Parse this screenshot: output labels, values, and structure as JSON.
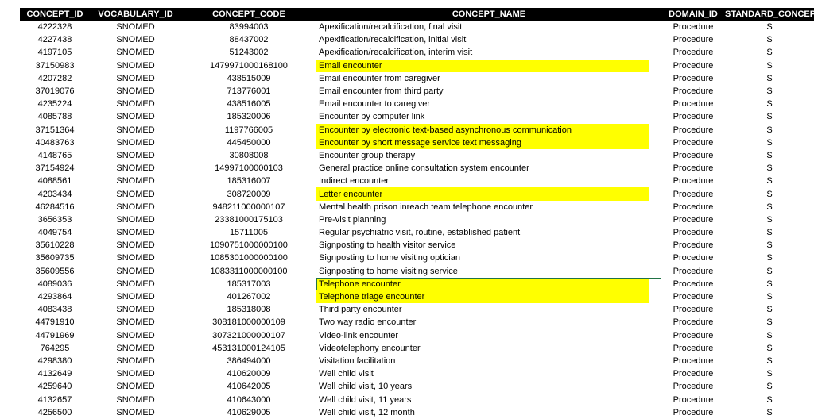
{
  "table": {
    "columns": [
      "CONCEPT_ID",
      "VOCABULARY_ID",
      "CONCEPT_CODE",
      "CONCEPT_NAME",
      "DOMAIN_ID",
      "STANDARD_CONCEP"
    ],
    "rows": [
      [
        "4222328",
        "SNOMED",
        "83994003",
        "Apexification/recalcification, final visit",
        "Procedure",
        "S"
      ],
      [
        "4227438",
        "SNOMED",
        "88437002",
        "Apexification/recalcification, initial visit",
        "Procedure",
        "S"
      ],
      [
        "4197105",
        "SNOMED",
        "51243002",
        "Apexification/recalcification, interim visit",
        "Procedure",
        "S"
      ],
      [
        "37150983",
        "SNOMED",
        "1479971000168100",
        "Email encounter",
        "Procedure",
        "S"
      ],
      [
        "4207282",
        "SNOMED",
        "438515009",
        "Email encounter from caregiver",
        "Procedure",
        "S"
      ],
      [
        "37019076",
        "SNOMED",
        "713776001",
        "Email encounter from third party",
        "Procedure",
        "S"
      ],
      [
        "4235224",
        "SNOMED",
        "438516005",
        "Email encounter to caregiver",
        "Procedure",
        "S"
      ],
      [
        "4085788",
        "SNOMED",
        "185320006",
        "Encounter by computer link",
        "Procedure",
        "S"
      ],
      [
        "37151364",
        "SNOMED",
        "1197766005",
        "Encounter by electronic text-based asynchronous communication",
        "Procedure",
        "S"
      ],
      [
        "40483763",
        "SNOMED",
        "445450000",
        "Encounter by short message service text messaging",
        "Procedure",
        "S"
      ],
      [
        "4148765",
        "SNOMED",
        "30808008",
        "Encounter group therapy",
        "Procedure",
        "S"
      ],
      [
        "37154924",
        "SNOMED",
        "14997100000103",
        "General practice online consultation system encounter",
        "Procedure",
        "S"
      ],
      [
        "4088561",
        "SNOMED",
        "185316007",
        "Indirect encounter",
        "Procedure",
        "S"
      ],
      [
        "4203434",
        "SNOMED",
        "308720009",
        "Letter encounter",
        "Procedure",
        "S"
      ],
      [
        "46284516",
        "SNOMED",
        "948211000000107",
        "Mental health prison inreach team telephone encounter",
        "Procedure",
        "S"
      ],
      [
        "3656353",
        "SNOMED",
        "23381000175103",
        "Pre-visit planning",
        "Procedure",
        "S"
      ],
      [
        "4049754",
        "SNOMED",
        "15711005",
        "Regular psychiatric visit, routine, established patient",
        "Procedure",
        "S"
      ],
      [
        "35610228",
        "SNOMED",
        "1090751000000100",
        "Signposting to health visitor service",
        "Procedure",
        "S"
      ],
      [
        "35609735",
        "SNOMED",
        "1085301000000100",
        "Signposting to home visiting optician",
        "Procedure",
        "S"
      ],
      [
        "35609556",
        "SNOMED",
        "1083311000000100",
        "Signposting to home visiting service",
        "Procedure",
        "S"
      ],
      [
        "4089036",
        "SNOMED",
        "185317003",
        "Telephone encounter",
        "Procedure",
        "S"
      ],
      [
        "4293864",
        "SNOMED",
        "401267002",
        "Telephone triage encounter",
        "Procedure",
        "S"
      ],
      [
        "4083438",
        "SNOMED",
        "185318008",
        "Third party encounter",
        "Procedure",
        "S"
      ],
      [
        "44791910",
        "SNOMED",
        "308181000000109",
        "Two way radio encounter",
        "Procedure",
        "S"
      ],
      [
        "44791969",
        "SNOMED",
        "307321000000107",
        "Video-link encounter",
        "Procedure",
        "S"
      ],
      [
        "764295",
        "SNOMED",
        "453131000124105",
        "Videotelephony encounter",
        "Procedure",
        "S"
      ],
      [
        "4298380",
        "SNOMED",
        "386494000",
        "Visitation facilitation",
        "Procedure",
        "S"
      ],
      [
        "4132649",
        "SNOMED",
        "410620009",
        "Well child visit",
        "Procedure",
        "S"
      ],
      [
        "4259640",
        "SNOMED",
        "410642005",
        "Well child visit, 10 years",
        "Procedure",
        "S"
      ],
      [
        "4132657",
        "SNOMED",
        "410643000",
        "Well child visit, 11 years",
        "Procedure",
        "S"
      ],
      [
        "4256500",
        "SNOMED",
        "410629005",
        "Well child visit, 12 month",
        "Procedure",
        "S"
      ]
    ],
    "highlighted_rows": [
      3,
      8,
      9,
      13,
      20,
      21
    ],
    "selected_row": 20
  }
}
